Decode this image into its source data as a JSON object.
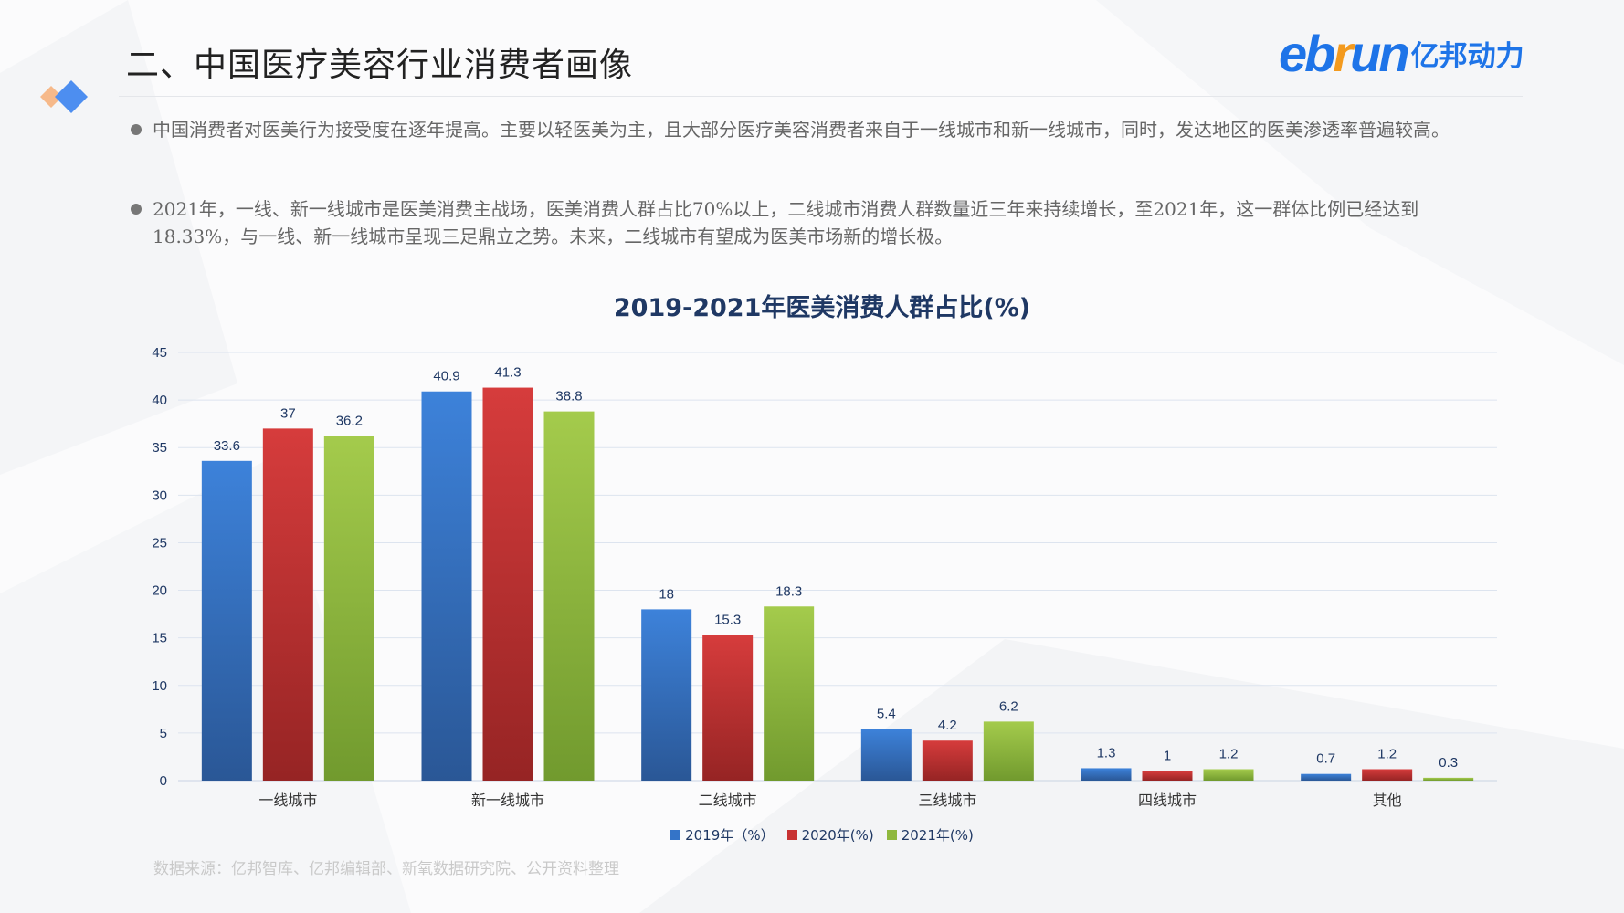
{
  "header": {
    "title": "二、中国医疗美容行业消费者画像",
    "logo_en": "ebrun",
    "logo_cn": "亿邦动力"
  },
  "bullets": [
    "中国消费者对医美行为接受度在逐年提高。主要以轻医美为主，且大部分医疗美容消费者来自于一线城市和新一线城市，同时，发达地区的医美渗透率普遍较高。",
    "2021年，一线、新一线城市是医美消费主战场，医美消费人群占比70%以上，二线城市消费人群数量近三年来持续增长，至2021年，这一群体比例已经达到18.33%，与一线、新一线城市呈现三足鼎立之势。未来，二线城市有望成为医美市场新的增长极。"
  ],
  "source": "数据来源：亿邦智库、亿邦编辑部、新氧数据研究院、公开资料整理",
  "colors": {
    "accent": "#1e74e8",
    "logo_orange": "#f39a1e",
    "title": "#1f3864"
  },
  "chart_data": {
    "type": "bar",
    "title": "2019-2021年医美消费人群占比(%)",
    "categories": [
      "一线城市",
      "新一线城市",
      "二线城市",
      "三线城市",
      "四线城市",
      "其他"
    ],
    "series": [
      {
        "name": "2019年（%）",
        "color": "#3474c8",
        "values": [
          33.6,
          40.9,
          18,
          5.4,
          1.3,
          0.7
        ]
      },
      {
        "name": "2020年(%)",
        "color": "#c83232",
        "values": [
          37,
          41.3,
          15.3,
          4.2,
          1,
          1.2
        ]
      },
      {
        "name": "2021年(%)",
        "color": "#8fb83e",
        "values": [
          36.2,
          38.8,
          18.3,
          6.2,
          1.2,
          0.3
        ]
      }
    ],
    "ylim": [
      0,
      45
    ],
    "yticks": [
      0,
      5,
      10,
      15,
      20,
      25,
      30,
      35,
      40,
      45
    ],
    "grid": true,
    "data_labels": true,
    "legend": "bottom"
  }
}
